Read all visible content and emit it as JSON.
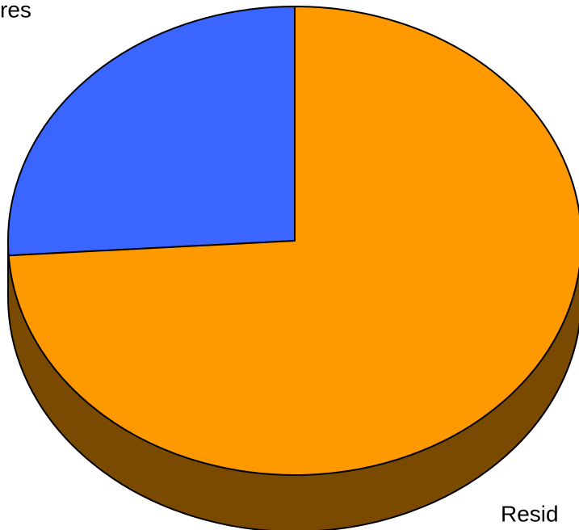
{
  "chart_data": {
    "type": "pie",
    "categories": [
      "res",
      "Resid"
    ],
    "values": [
      26,
      74
    ],
    "colors": [
      "#3a66ff",
      "#ff9900"
    ],
    "side_color": "#7a4a00",
    "start_angle": 90
  }
}
